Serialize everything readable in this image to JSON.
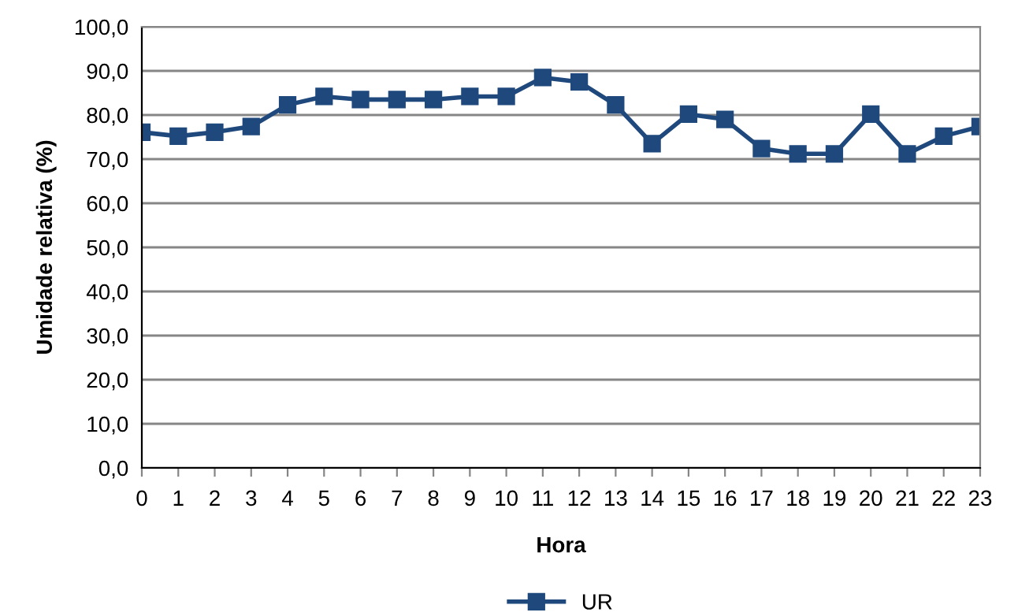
{
  "chart_data": {
    "type": "line",
    "xlabel": "Hora",
    "ylabel": "Umidade relativa (%)",
    "categories": [
      "0",
      "1",
      "2",
      "3",
      "4",
      "5",
      "6",
      "7",
      "8",
      "9",
      "10",
      "11",
      "12",
      "13",
      "14",
      "15",
      "16",
      "17",
      "18",
      "19",
      "20",
      "21",
      "22",
      "23"
    ],
    "series": [
      {
        "name": "UR",
        "color": "#1f497d",
        "values": [
          76.1,
          75.2,
          76.1,
          77.4,
          82.3,
          84.2,
          83.5,
          83.5,
          83.5,
          84.2,
          84.2,
          88.5,
          87.5,
          82.3,
          73.5,
          80.2,
          79.0,
          72.4,
          71.2,
          71.2,
          80.2,
          71.2,
          75.2,
          77.4
        ]
      }
    ],
    "ylim": [
      0,
      100
    ],
    "yticks": [
      {
        "value": 0,
        "label": "0,0"
      },
      {
        "value": 10,
        "label": "10,0"
      },
      {
        "value": 20,
        "label": "20,0"
      },
      {
        "value": 30,
        "label": "30,0"
      },
      {
        "value": 40,
        "label": "40,0"
      },
      {
        "value": 50,
        "label": "50,0"
      },
      {
        "value": 60,
        "label": "60,0"
      },
      {
        "value": 70,
        "label": "70,0"
      },
      {
        "value": 80,
        "label": "80,0"
      },
      {
        "value": 90,
        "label": "90,0"
      },
      {
        "value": 100,
        "label": "100,0"
      }
    ],
    "grid": "y",
    "legend": "bottom",
    "marker": "square",
    "line_style": "solid"
  }
}
